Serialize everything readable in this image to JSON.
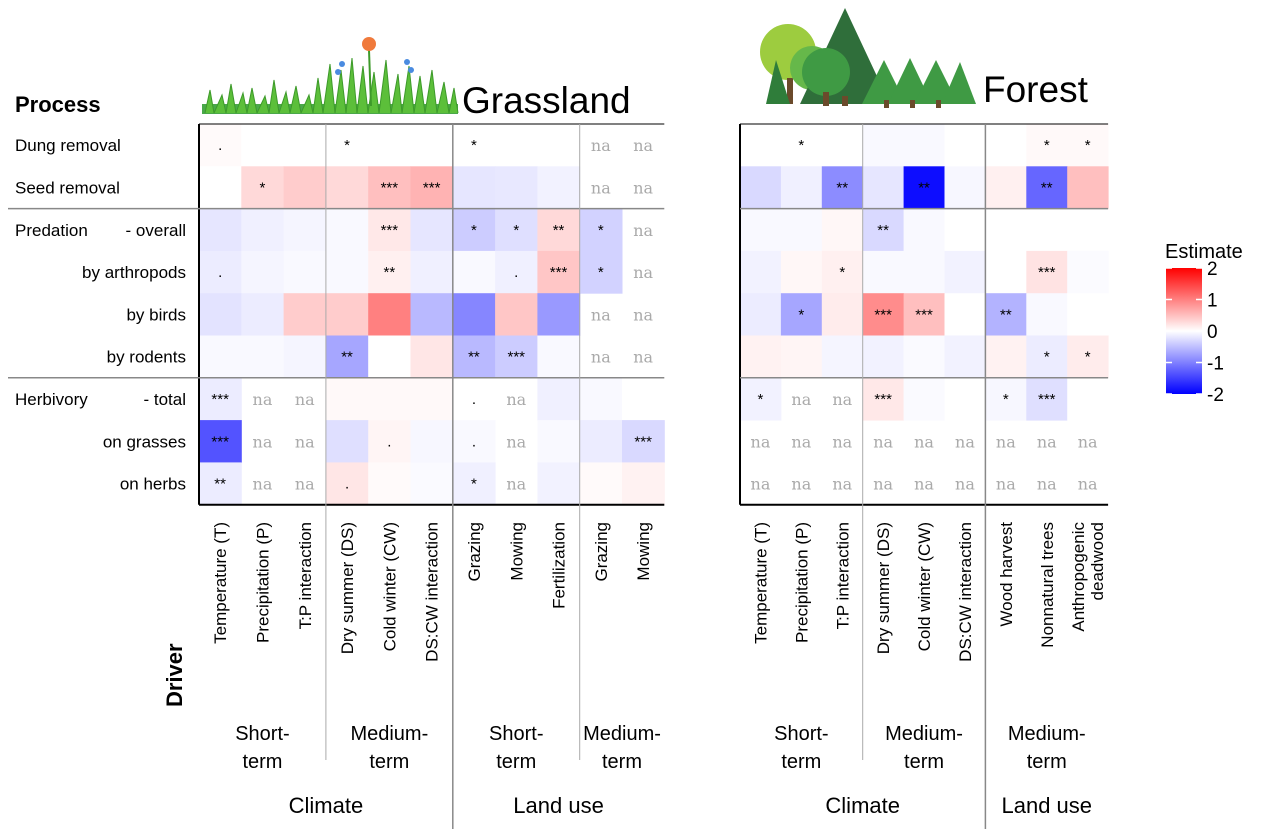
{
  "chart_data": {
    "type": "heatmap",
    "y_axis_title": "Process",
    "x_axis_title": "Driver",
    "processes": [
      "Dung removal",
      "Seed removal",
      "Predation - overall",
      "by arthropods",
      "by birds",
      "by rodents",
      "Herbivory - total",
      "on grasses",
      "on herbs"
    ],
    "process_labels": [
      {
        "text": "Dung removal"
      },
      {
        "text": "Seed removal"
      },
      {
        "text": "Predation",
        "suffix": "- overall"
      },
      {
        "text": "by arthropods"
      },
      {
        "text": "by birds"
      },
      {
        "text": "by rodents"
      },
      {
        "text": "Herbivory",
        "suffix": "- total"
      },
      {
        "text": "on grasses"
      },
      {
        "text": "on herbs"
      }
    ],
    "legend": {
      "title": "Estimate",
      "range": [
        -2,
        2
      ],
      "ticks": [
        "2",
        "1",
        "0",
        "-1",
        "-2"
      ],
      "colors": {
        "low": "#0000ff",
        "mid": "#ffffff",
        "high": "#ff0000"
      }
    },
    "na_text": "na",
    "panels": [
      {
        "title": "Grassland",
        "columns": [
          {
            "label": "Temperature (T)",
            "lines": [
              "Temperature (T)"
            ]
          },
          {
            "label": "Precipitation (P)",
            "lines": [
              "Precipitation (P)"
            ]
          },
          {
            "label": "T:P interaction",
            "lines": [
              "T:P interaction"
            ]
          },
          {
            "label": "Dry summer (DS)",
            "lines": [
              "Dry summer (DS)"
            ]
          },
          {
            "label": "Cold winter (CW)",
            "lines": [
              "Cold winter (CW)"
            ]
          },
          {
            "label": "DS:CW interaction",
            "lines": [
              "DS:CW interaction"
            ]
          },
          {
            "label": "Grazing",
            "lines": [
              "Grazing"
            ]
          },
          {
            "label": "Mowing",
            "lines": [
              "Mowing"
            ]
          },
          {
            "label": "Fertilization",
            "lines": [
              "Fertilization"
            ]
          },
          {
            "label": "Grazing",
            "lines": [
              "Grazing"
            ]
          },
          {
            "label": "Mowing",
            "lines": [
              "Mowing"
            ]
          }
        ],
        "groups": [
          {
            "lines": [
              "Short-",
              "term"
            ],
            "span": [
              0,
              2
            ]
          },
          {
            "lines": [
              "Medium-",
              "term"
            ],
            "span": [
              3,
              5
            ]
          },
          {
            "lines": [
              "Short-",
              "term"
            ],
            "span": [
              6,
              8
            ]
          },
          {
            "lines": [
              "Medium-",
              "term"
            ],
            "span": [
              9,
              10
            ]
          }
        ],
        "categories": [
          {
            "text": "Climate",
            "span": [
              0,
              5
            ]
          },
          {
            "text": "Land use",
            "span": [
              6,
              10
            ]
          }
        ],
        "estimates": [
          [
            0.04,
            0,
            0,
            0,
            0,
            0,
            0,
            0,
            0,
            null,
            null
          ],
          [
            0,
            0.3,
            0.4,
            0.3,
            0.5,
            0.6,
            -0.2,
            -0.18,
            -0.1,
            null,
            null
          ],
          [
            -0.2,
            -0.12,
            -0.08,
            -0.05,
            0.18,
            -0.2,
            -0.4,
            -0.25,
            0.3,
            -0.35,
            null
          ],
          [
            -0.15,
            -0.08,
            -0.05,
            -0.05,
            0.12,
            -0.12,
            -0.05,
            -0.12,
            0.45,
            -0.35,
            null
          ],
          [
            -0.22,
            -0.15,
            0.4,
            0.4,
            1.0,
            -0.55,
            -0.95,
            0.45,
            -0.8,
            null,
            null
          ],
          [
            -0.05,
            -0.05,
            -0.08,
            -0.7,
            0,
            0.2,
            -0.55,
            -0.4,
            -0.05,
            null,
            null
          ],
          [
            -0.15,
            null,
            null,
            0.05,
            0.05,
            0.05,
            0,
            null,
            -0.12,
            -0.05,
            0
          ],
          [
            -1.35,
            null,
            null,
            -0.25,
            0.08,
            -0.06,
            -0.05,
            null,
            -0.05,
            -0.15,
            -0.3
          ],
          [
            -0.15,
            null,
            null,
            0.2,
            0.04,
            -0.04,
            -0.12,
            null,
            -0.1,
            0.04,
            0.1
          ]
        ],
        "significance": [
          [
            ".",
            "",
            "",
            "*",
            "",
            "",
            "*",
            "",
            "",
            "",
            ""
          ],
          [
            "",
            "*",
            "",
            "",
            "***",
            "***",
            "",
            "",
            "",
            "",
            ""
          ],
          [
            "",
            "",
            "",
            "",
            "***",
            "",
            "*",
            "*",
            "**",
            "*",
            ""
          ],
          [
            ".",
            "",
            "",
            "",
            "**",
            "",
            "",
            ".",
            "***",
            "*",
            ""
          ],
          [
            "",
            "",
            "",
            "",
            "",
            "",
            "",
            "",
            "",
            "",
            ""
          ],
          [
            "",
            "",
            "",
            "**",
            "",
            "",
            "**",
            "***",
            "",
            "",
            ""
          ],
          [
            "***",
            "",
            "",
            "",
            "",
            "",
            ".",
            "",
            "",
            "",
            ""
          ],
          [
            "***",
            "",
            "",
            "",
            ".",
            "",
            ".",
            "",
            "",
            "",
            "***"
          ],
          [
            "**",
            "",
            "",
            ".",
            "",
            "",
            "*",
            "",
            "",
            "",
            ""
          ]
        ]
      },
      {
        "title": "Forest",
        "columns": [
          {
            "label": "Temperature (T)",
            "lines": [
              "Temperature (T)"
            ]
          },
          {
            "label": "Precipitation (P)",
            "lines": [
              "Precipitation (P)"
            ]
          },
          {
            "label": "T:P interaction",
            "lines": [
              "T:P interaction"
            ]
          },
          {
            "label": "Dry summer (DS)",
            "lines": [
              "Dry summer (DS)"
            ]
          },
          {
            "label": "Cold winter (CW)",
            "lines": [
              "Cold winter (CW)"
            ]
          },
          {
            "label": "DS:CW interaction",
            "lines": [
              "DS:CW interaction"
            ]
          },
          {
            "label": "Wood harvest",
            "lines": [
              "Wood harvest"
            ]
          },
          {
            "label": "Nonnatural trees",
            "lines": [
              "Nonnatural trees"
            ]
          },
          {
            "label": "Anthropogenic deadwood",
            "lines": [
              "Anthropogenic",
              "deadwood"
            ]
          }
        ],
        "groups": [
          {
            "lines": [
              "Short-",
              "term"
            ],
            "span": [
              0,
              2
            ]
          },
          {
            "lines": [
              "Medium-",
              "term"
            ],
            "span": [
              3,
              5
            ]
          },
          {
            "lines": [
              "Medium-",
              "term"
            ],
            "span": [
              6,
              8
            ]
          }
        ],
        "categories": [
          {
            "text": "Climate",
            "span": [
              0,
              5
            ]
          },
          {
            "text": "Land use",
            "span": [
              6,
              8
            ]
          }
        ],
        "estimates": [
          [
            0,
            0,
            0,
            -0.05,
            -0.05,
            0,
            0,
            0.05,
            0.05
          ],
          [
            -0.3,
            -0.12,
            -0.9,
            -0.2,
            -1.9,
            -0.06,
            0.12,
            -1.2,
            0.5
          ],
          [
            -0.05,
            -0.05,
            0.06,
            -0.3,
            -0.05,
            0,
            0,
            0,
            0
          ],
          [
            -0.1,
            0.06,
            0.12,
            -0.05,
            -0.05,
            -0.1,
            0,
            0.22,
            -0.03
          ],
          [
            -0.15,
            -0.7,
            0.15,
            0.9,
            0.5,
            0,
            -0.6,
            -0.05,
            0
          ],
          [
            0.1,
            0.08,
            -0.08,
            -0.1,
            -0.04,
            -0.1,
            0.1,
            -0.15,
            0.15
          ],
          [
            -0.1,
            null,
            null,
            0.18,
            -0.04,
            0,
            -0.06,
            -0.25,
            0
          ],
          [
            null,
            null,
            null,
            null,
            null,
            null,
            null,
            null,
            null
          ],
          [
            null,
            null,
            null,
            null,
            null,
            null,
            null,
            null,
            null
          ]
        ],
        "significance": [
          [
            "",
            "*",
            "",
            "",
            "",
            "",
            "",
            "*",
            "*"
          ],
          [
            "",
            "",
            "**",
            "",
            "**",
            "",
            "",
            "**",
            ""
          ],
          [
            "",
            "",
            "",
            "**",
            "",
            "",
            "",
            "",
            ""
          ],
          [
            "",
            "",
            "*",
            "",
            "",
            "",
            "",
            "***",
            ""
          ],
          [
            "",
            "*",
            "",
            "***",
            "***",
            "",
            "**",
            "",
            ""
          ],
          [
            "",
            "",
            "",
            "",
            "",
            "",
            "",
            "*",
            "*"
          ],
          [
            "*",
            "",
            "",
            "***",
            "",
            "",
            "*",
            "***",
            ""
          ],
          [
            "",
            "",
            "",
            "",
            "",
            "",
            "",
            "",
            ""
          ],
          [
            "",
            "",
            "",
            "",
            "",
            "",
            "",
            "",
            ""
          ]
        ]
      }
    ]
  }
}
